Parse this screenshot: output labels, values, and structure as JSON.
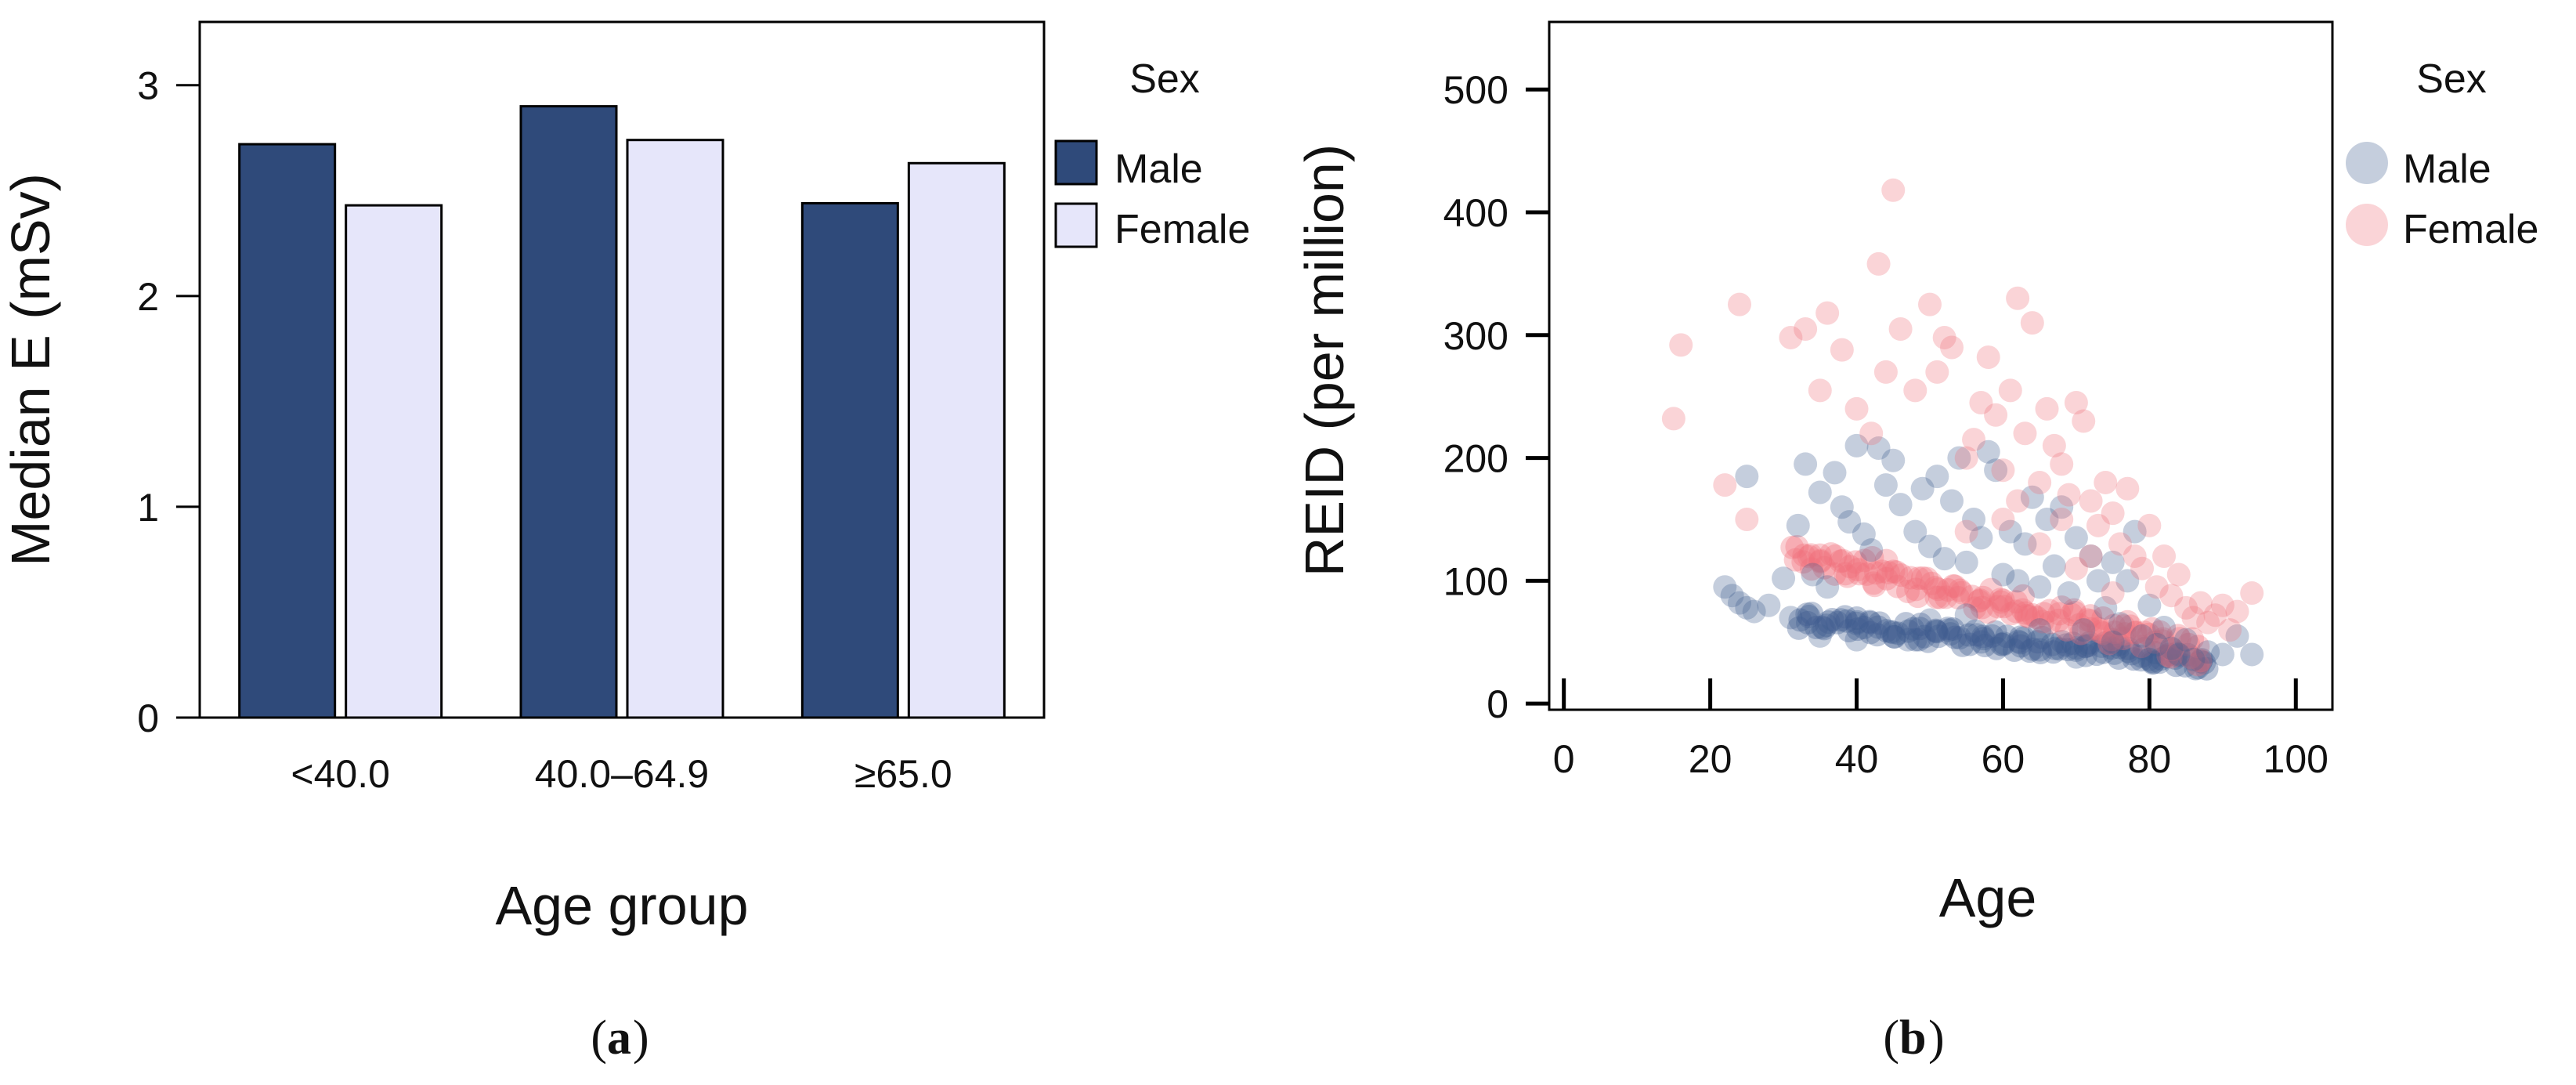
{
  "colors": {
    "male": "#2f4a7a",
    "female": "#e6e6fa",
    "male_point": "#3f5c8f",
    "female_point": "#f0707a",
    "axis": "#000000"
  },
  "chart_data": [
    {
      "type": "bar",
      "panel_label": "(a)",
      "caption_letter": "a",
      "xlabel": "Age group",
      "ylabel": "Median E (mSv)",
      "categories": [
        "<40.0",
        "40.0–64.9",
        "≥65.0"
      ],
      "series": [
        {
          "name": "Male",
          "values": [
            2.72,
            2.9,
            2.44
          ]
        },
        {
          "name": "Female",
          "values": [
            2.43,
            2.74,
            2.63
          ]
        }
      ],
      "ylim": [
        0,
        3.3
      ],
      "yticks": [
        0,
        1,
        2,
        3
      ],
      "grid": false,
      "legend": {
        "title": "Sex",
        "entries": [
          "Male",
          "Female"
        ],
        "position": "right"
      }
    },
    {
      "type": "scatter",
      "panel_label": "(b)",
      "caption_letter": "b",
      "xlabel": "Age",
      "ylabel": "REID (per million)",
      "xlim": [
        -2,
        105
      ],
      "ylim": [
        -5,
        555
      ],
      "xticks": [
        0,
        20,
        40,
        60,
        80,
        100
      ],
      "yticks": [
        0,
        100,
        200,
        300,
        400,
        500
      ],
      "grid": false,
      "legend": {
        "title": "Sex",
        "entries": [
          "Male",
          "Female"
        ],
        "position": "right"
      },
      "series": [
        {
          "name": "Male",
          "points": [
            [
              22,
              95
            ],
            [
              23,
              88
            ],
            [
              24,
              82
            ],
            [
              25,
              78
            ],
            [
              25,
              185
            ],
            [
              26,
              75
            ],
            [
              28,
              80
            ],
            [
              30,
              102
            ],
            [
              31,
              70
            ],
            [
              32,
              145
            ],
            [
              33,
              195
            ],
            [
              34,
              105
            ],
            [
              35,
              172
            ],
            [
              36,
              95
            ],
            [
              37,
              188
            ],
            [
              38,
              160
            ],
            [
              39,
              148
            ],
            [
              40,
              210
            ],
            [
              41,
              138
            ],
            [
              42,
              125
            ],
            [
              43,
              208
            ],
            [
              44,
              178
            ],
            [
              45,
              198
            ],
            [
              46,
              162
            ],
            [
              47,
              52
            ],
            [
              48,
              140
            ],
            [
              49,
              175
            ],
            [
              50,
              128
            ],
            [
              51,
              185
            ],
            [
              52,
              118
            ],
            [
              53,
              165
            ],
            [
              54,
              200
            ],
            [
              55,
              115
            ],
            [
              56,
              150
            ],
            [
              57,
              135
            ],
            [
              58,
              205
            ],
            [
              59,
              190
            ],
            [
              60,
              105
            ],
            [
              61,
              140
            ],
            [
              62,
              100
            ],
            [
              63,
              130
            ],
            [
              64,
              168
            ],
            [
              65,
              95
            ],
            [
              66,
              150
            ],
            [
              67,
              112
            ],
            [
              68,
              160
            ],
            [
              69,
              90
            ],
            [
              70,
              135
            ],
            [
              71,
              60
            ],
            [
              72,
              120
            ],
            [
              73,
              100
            ],
            [
              74,
              78
            ],
            [
              75,
              115
            ],
            [
              76,
              65
            ],
            [
              77,
              100
            ],
            [
              78,
              140
            ],
            [
              79,
              55
            ],
            [
              80,
              80
            ],
            [
              81,
              48
            ],
            [
              82,
              62
            ],
            [
              83,
              45
            ],
            [
              84,
              40
            ],
            [
              85,
              52
            ],
            [
              86,
              36
            ],
            [
              88,
              42
            ],
            [
              90,
              40
            ],
            [
              92,
              55
            ],
            [
              94,
              40
            ],
            [
              35,
              55
            ],
            [
              40,
              52
            ],
            [
              45,
              58
            ],
            [
              50,
              68
            ],
            [
              55,
              72
            ],
            [
              60,
              48
            ],
            [
              65,
              60
            ],
            [
              70,
              38
            ],
            [
              75,
              50
            ],
            [
              80,
              36
            ]
          ]
        },
        {
          "name": "Female",
          "points": [
            [
              15,
              232
            ],
            [
              16,
              292
            ],
            [
              22,
              178
            ],
            [
              24,
              325
            ],
            [
              25,
              150
            ],
            [
              31,
              298
            ],
            [
              33,
              305
            ],
            [
              35,
              255
            ],
            [
              36,
              318
            ],
            [
              38,
              288
            ],
            [
              40,
              240
            ],
            [
              42,
              220
            ],
            [
              43,
              358
            ],
            [
              44,
              270
            ],
            [
              45,
              418
            ],
            [
              46,
              305
            ],
            [
              48,
              255
            ],
            [
              50,
              325
            ],
            [
              51,
              270
            ],
            [
              52,
              298
            ],
            [
              53,
              290
            ],
            [
              55,
              200
            ],
            [
              56,
              215
            ],
            [
              57,
              245
            ],
            [
              58,
              282
            ],
            [
              59,
              235
            ],
            [
              60,
              190
            ],
            [
              61,
              255
            ],
            [
              62,
              330
            ],
            [
              63,
              220
            ],
            [
              64,
              310
            ],
            [
              65,
              180
            ],
            [
              66,
              240
            ],
            [
              67,
              210
            ],
            [
              68,
              195
            ],
            [
              69,
              170
            ],
            [
              70,
              245
            ],
            [
              71,
              230
            ],
            [
              72,
              165
            ],
            [
              73,
              145
            ],
            [
              74,
              180
            ],
            [
              75,
              155
            ],
            [
              76,
              130
            ],
            [
              77,
              175
            ],
            [
              78,
              120
            ],
            [
              79,
              110
            ],
            [
              80,
              145
            ],
            [
              81,
              95
            ],
            [
              82,
              120
            ],
            [
              83,
              88
            ],
            [
              84,
              105
            ],
            [
              85,
              78
            ],
            [
              86,
              70
            ],
            [
              87,
              82
            ],
            [
              88,
              66
            ],
            [
              89,
              72
            ],
            [
              90,
              80
            ],
            [
              91,
              60
            ],
            [
              92,
              75
            ],
            [
              94,
              90
            ],
            [
              60,
              150
            ],
            [
              65,
              130
            ],
            [
              70,
              110
            ],
            [
              75,
              90
            ],
            [
              55,
              140
            ],
            [
              62,
              165
            ],
            [
              68,
              150
            ],
            [
              72,
              120
            ]
          ]
        }
      ],
      "trends": [
        {
          "name": "Male",
          "from": [
            32,
            68
          ],
          "to": [
            88,
            34
          ],
          "band": 14
        },
        {
          "name": "Female",
          "from": [
            31,
            124
          ],
          "to": [
            87,
            42
          ],
          "band": 22
        }
      ]
    }
  ]
}
